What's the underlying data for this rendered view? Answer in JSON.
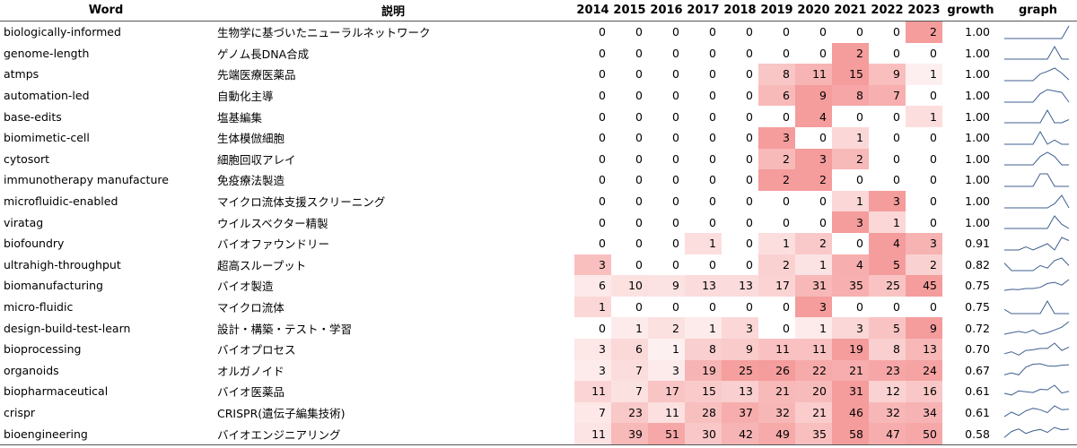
{
  "headers": {
    "word": "Word",
    "description": "説明",
    "years": [
      "2014",
      "2015",
      "2016",
      "2017",
      "2018",
      "2019",
      "2020",
      "2021",
      "2022",
      "2023"
    ],
    "growth": "growth",
    "graph": "graph"
  },
  "colors": {
    "heat": "#f06b6b",
    "sparkline": "#3f5f8f"
  },
  "rows": [
    {
      "word": "biologically-informed",
      "desc": "生物学に基づいたニューラルネットワーク",
      "values": [
        0,
        0,
        0,
        0,
        0,
        0,
        0,
        0,
        0,
        2
      ],
      "growth": "1.00"
    },
    {
      "word": "genome-length",
      "desc": "ゲノム長DNA合成",
      "values": [
        0,
        0,
        0,
        0,
        0,
        0,
        0,
        2,
        0,
        0
      ],
      "growth": "1.00"
    },
    {
      "word": "atmps",
      "desc": "先端医療医薬品",
      "values": [
        0,
        0,
        0,
        0,
        0,
        8,
        11,
        15,
        9,
        1
      ],
      "growth": "1.00"
    },
    {
      "word": "automation-led",
      "desc": "自動化主導",
      "values": [
        0,
        0,
        0,
        0,
        0,
        6,
        9,
        8,
        7,
        0
      ],
      "growth": "1.00"
    },
    {
      "word": "base-edits",
      "desc": "塩基編集",
      "values": [
        0,
        0,
        0,
        0,
        0,
        0,
        4,
        0,
        0,
        1
      ],
      "growth": "1.00"
    },
    {
      "word": "biomimetic-cell",
      "desc": "生体模倣細胞",
      "values": [
        0,
        0,
        0,
        0,
        0,
        3,
        0,
        1,
        0,
        0
      ],
      "growth": "1.00"
    },
    {
      "word": "cytosort",
      "desc": "細胞回収アレイ",
      "values": [
        0,
        0,
        0,
        0,
        0,
        2,
        3,
        2,
        0,
        0
      ],
      "growth": "1.00"
    },
    {
      "word": "immunotherapy manufacture",
      "desc": "免疫療法製造",
      "values": [
        0,
        0,
        0,
        0,
        0,
        2,
        2,
        0,
        0,
        0
      ],
      "growth": "1.00"
    },
    {
      "word": "microfluidic-enabled",
      "desc": "マイクロ流体支援スクリーニング",
      "values": [
        0,
        0,
        0,
        0,
        0,
        0,
        0,
        1,
        3,
        0
      ],
      "growth": "1.00"
    },
    {
      "word": "viratag",
      "desc": "ウイルスベクター精製",
      "values": [
        0,
        0,
        0,
        0,
        0,
        0,
        0,
        3,
        1,
        0
      ],
      "growth": "1.00"
    },
    {
      "word": "biofoundry",
      "desc": "バイオファウンドリー",
      "values": [
        0,
        0,
        0,
        1,
        0,
        1,
        2,
        0,
        4,
        3
      ],
      "growth": "0.91"
    },
    {
      "word": "ultrahigh-throughput",
      "desc": "超高スループット",
      "values": [
        3,
        0,
        0,
        0,
        0,
        2,
        1,
        4,
        5,
        2
      ],
      "growth": "0.82"
    },
    {
      "word": "biomanufacturing",
      "desc": "バイオ製造",
      "values": [
        6,
        10,
        9,
        13,
        13,
        17,
        31,
        35,
        25,
        45
      ],
      "growth": "0.75"
    },
    {
      "word": "micro-fluidic",
      "desc": "マイクロ流体",
      "values": [
        1,
        0,
        0,
        0,
        0,
        0,
        3,
        0,
        0,
        0
      ],
      "growth": "0.75"
    },
    {
      "word": "design-build-test-learn",
      "desc": "設計・構築・テスト・学習",
      "values": [
        0,
        1,
        2,
        1,
        3,
        0,
        1,
        3,
        5,
        9
      ],
      "growth": "0.72"
    },
    {
      "word": "bioprocessing",
      "desc": "バイオプロセス",
      "values": [
        3,
        6,
        1,
        8,
        9,
        11,
        11,
        19,
        8,
        13
      ],
      "growth": "0.70"
    },
    {
      "word": "organoids",
      "desc": "オルガノイド",
      "values": [
        3,
        7,
        3,
        19,
        25,
        26,
        22,
        21,
        23,
        24
      ],
      "growth": "0.67"
    },
    {
      "word": "biopharmaceutical",
      "desc": "バイオ医薬品",
      "values": [
        11,
        7,
        17,
        15,
        13,
        21,
        20,
        31,
        12,
        16
      ],
      "growth": "0.61"
    },
    {
      "word": "crispr",
      "desc": "CRISPR(遺伝子編集技術)",
      "values": [
        7,
        23,
        11,
        28,
        37,
        32,
        21,
        46,
        32,
        34
      ],
      "growth": "0.61"
    },
    {
      "word": "bioengineering",
      "desc": "バイオエンジニアリング",
      "values": [
        11,
        39,
        51,
        30,
        42,
        49,
        35,
        58,
        47,
        50
      ],
      "growth": "0.58"
    }
  ]
}
